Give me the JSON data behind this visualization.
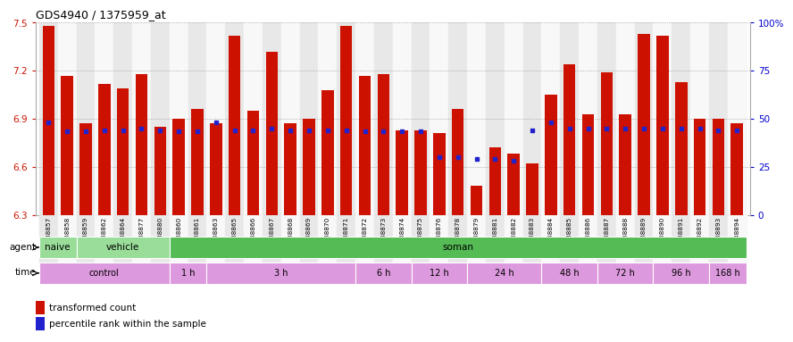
{
  "title": "GDS4940 / 1375959_at",
  "ylim_left": [
    6.3,
    7.5
  ],
  "ylim_right": [
    0,
    100
  ],
  "yticks_left": [
    6.3,
    6.6,
    6.9,
    7.2,
    7.5
  ],
  "yticks_right": [
    0,
    25,
    50,
    75,
    100
  ],
  "ytick_labels_right": [
    "0",
    "25",
    "50",
    "75",
    "100%"
  ],
  "bar_color": "#cc1100",
  "blue_color": "#2222cc",
  "samples": [
    "GSM338857",
    "GSM338858",
    "GSM338859",
    "GSM338862",
    "GSM338864",
    "GSM338877",
    "GSM338880",
    "GSM338860",
    "GSM338861",
    "GSM338863",
    "GSM338865",
    "GSM338866",
    "GSM338867",
    "GSM338868",
    "GSM338869",
    "GSM338870",
    "GSM338871",
    "GSM338872",
    "GSM338873",
    "GSM338874",
    "GSM338875",
    "GSM338876",
    "GSM338878",
    "GSM338879",
    "GSM338881",
    "GSM338882",
    "GSM338883",
    "GSM338884",
    "GSM338885",
    "GSM338886",
    "GSM338887",
    "GSM338888",
    "GSM338889",
    "GSM338890",
    "GSM338891",
    "GSM338892",
    "GSM338893",
    "GSM338894"
  ],
  "bar_heights": [
    7.48,
    7.17,
    6.87,
    7.12,
    7.09,
    7.18,
    6.85,
    6.9,
    6.96,
    6.87,
    7.42,
    6.95,
    7.32,
    6.87,
    6.9,
    7.08,
    7.48,
    7.17,
    7.18,
    6.83,
    6.83,
    6.81,
    6.96,
    6.48,
    6.72,
    6.68,
    6.62,
    7.05,
    7.24,
    6.93,
    7.19,
    6.93,
    7.43,
    7.42,
    7.13,
    6.9,
    6.9,
    6.87
  ],
  "blue_markers": [
    6.88,
    6.82,
    6.82,
    6.83,
    6.83,
    6.84,
    6.83,
    6.82,
    6.82,
    6.88,
    6.83,
    6.83,
    6.84,
    6.83,
    6.83,
    6.83,
    6.83,
    6.82,
    6.82,
    6.82,
    6.82,
    6.66,
    6.66,
    6.65,
    6.65,
    6.64,
    6.83,
    6.88,
    6.84,
    6.84,
    6.84,
    6.84,
    6.84,
    6.84,
    6.84,
    6.84,
    6.83,
    6.83
  ],
  "agent_groups": [
    {
      "label": "naive",
      "start": 0,
      "end": 1,
      "color": "#99dd99"
    },
    {
      "label": "vehicle",
      "start": 2,
      "end": 6,
      "color": "#99dd99"
    },
    {
      "label": "soman",
      "start": 7,
      "end": 37,
      "color": "#55bb55"
    }
  ],
  "time_groups": [
    {
      "label": "control",
      "start": 0,
      "end": 6
    },
    {
      "label": "1 h",
      "start": 7,
      "end": 8
    },
    {
      "label": "3 h",
      "start": 9,
      "end": 16
    },
    {
      "label": "6 h",
      "start": 17,
      "end": 19
    },
    {
      "label": "12 h",
      "start": 20,
      "end": 22
    },
    {
      "label": "24 h",
      "start": 23,
      "end": 26
    },
    {
      "label": "48 h",
      "start": 27,
      "end": 29
    },
    {
      "label": "72 h",
      "start": 30,
      "end": 32
    },
    {
      "label": "96 h",
      "start": 33,
      "end": 35
    },
    {
      "label": "168 h",
      "start": 36,
      "end": 37
    }
  ],
  "time_color": "#dd99dd",
  "grid_color": "#888888",
  "axis_color_left": "#cc1100",
  "axis_color_right": "#0000cc",
  "col_bg_even": "#e8e8e8",
  "col_bg_odd": "#f8f8f8"
}
